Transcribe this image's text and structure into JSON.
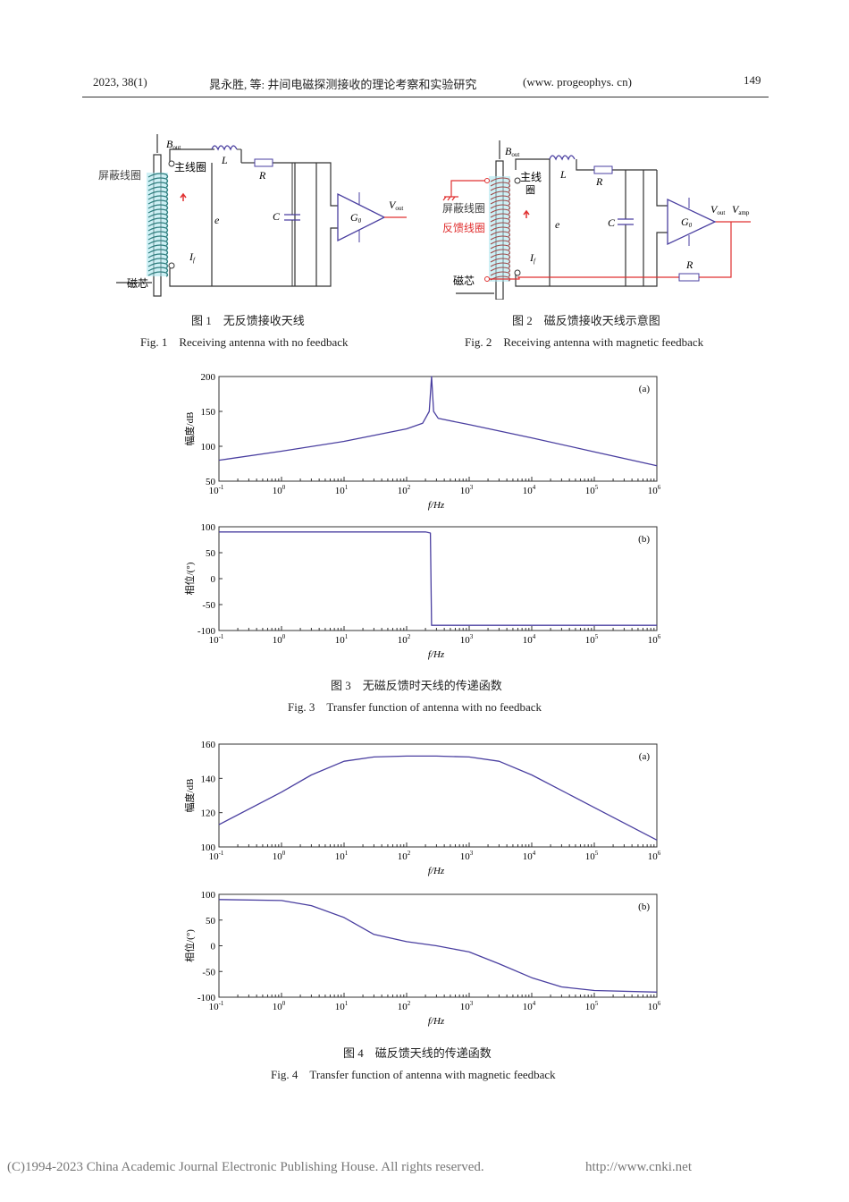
{
  "header": {
    "left": "2023, 38(1)",
    "center": "晁永胜, 等: 井间电磁探测接收的理论考察和实验研究",
    "url": "(www. progeophys. cn)",
    "page": "149"
  },
  "fig1": {
    "cn": "图 1　无反馈接收天线",
    "en": "Fig. 1　Receiving antenna with no feedback",
    "labels": {
      "bout": "B",
      "bout_sub": "out",
      "main_coil": "主线圈",
      "shield_coil": "屏蔽线圈",
      "core": "磁芯",
      "L": "L",
      "R": "R",
      "C": "C",
      "e": "e",
      "If": "I",
      "If_sub": "f",
      "G0": "G",
      "G0_sub": "0",
      "vout": "V",
      "vout_sub": "out"
    }
  },
  "fig2": {
    "cn": "图 2　磁反馈接收天线示意图",
    "en": "Fig. 2　Receiving antenna with magnetic feedback",
    "labels": {
      "bout": "B",
      "bout_sub": "out",
      "main_coil_1": "主线",
      "main_coil_2": "圈",
      "shield_coil": "屏蔽线圈",
      "feedback_coil": "反馈线圈",
      "core": "磁芯",
      "L": "L",
      "R": "R",
      "R2": "R",
      "C": "C",
      "e": "e",
      "If": "I",
      "If_sub": "f",
      "G0": "G",
      "G0_sub": "0",
      "vout": "V",
      "vout_sub": "out",
      "vamp": "V",
      "vamp_sub": "amp"
    }
  },
  "fig3": {
    "cn": "图 3　无磁反馈时天线的传递函数",
    "en": "Fig. 3　Transfer function of antenna with no feedback"
  },
  "fig4": {
    "cn": "图 4　磁反馈天线的传递函数",
    "en": "Fig. 4　Transfer function of antenna with magnetic feedback"
  },
  "colors": {
    "curve": "#4a3fa0",
    "feedback": "#e03030",
    "coil": "#2e7d7d",
    "axis": "#333333"
  },
  "chart_data": [
    {
      "id": "fig3a",
      "type": "line",
      "panel": "(a)",
      "xlabel": "f/Hz",
      "ylabel": "幅度/dB",
      "xscale": "log",
      "xlim": [
        0.1,
        1000000
      ],
      "ylim": [
        50,
        200
      ],
      "yticks": [
        50,
        100,
        150,
        200
      ],
      "xticks": [
        "10-1",
        "100",
        "101",
        "102",
        "103",
        "104",
        "105",
        "106"
      ],
      "points": [
        [
          0.1,
          80
        ],
        [
          1,
          93
        ],
        [
          10,
          107
        ],
        [
          100,
          125
        ],
        [
          180,
          133
        ],
        [
          230,
          150
        ],
        [
          250,
          200
        ],
        [
          270,
          150
        ],
        [
          320,
          140
        ],
        [
          1000,
          131
        ],
        [
          10000,
          112
        ],
        [
          100000,
          92
        ],
        [
          1000000,
          72
        ]
      ]
    },
    {
      "id": "fig3b",
      "type": "line",
      "panel": "(b)",
      "xlabel": "f/Hz",
      "ylabel": "相位/(°)",
      "xscale": "log",
      "xlim": [
        0.1,
        1000000
      ],
      "ylim": [
        -100,
        100
      ],
      "yticks": [
        -100,
        -50,
        0,
        50,
        100
      ],
      "xticks": [
        "10-1",
        "100",
        "101",
        "102",
        "103",
        "104",
        "105",
        "106"
      ],
      "points": [
        [
          0.1,
          90
        ],
        [
          200,
          90
        ],
        [
          240,
          88
        ],
        [
          250,
          -90
        ],
        [
          1000000,
          -90
        ]
      ]
    },
    {
      "id": "fig4a",
      "type": "line",
      "panel": "(a)",
      "xlabel": "f/Hz",
      "ylabel": "幅度/dB",
      "xscale": "log",
      "xlim": [
        0.1,
        1000000
      ],
      "ylim": [
        100,
        160
      ],
      "yticks": [
        100,
        120,
        140,
        160
      ],
      "xticks": [
        "10-1",
        "100",
        "101",
        "102",
        "103",
        "104",
        "105",
        "106"
      ],
      "points": [
        [
          0.1,
          113
        ],
        [
          1,
          132
        ],
        [
          3,
          142
        ],
        [
          10,
          150
        ],
        [
          30,
          152.5
        ],
        [
          100,
          153
        ],
        [
          300,
          153
        ],
        [
          1000,
          152.5
        ],
        [
          3000,
          150
        ],
        [
          10000,
          142
        ],
        [
          100000,
          123
        ],
        [
          1000000,
          104
        ]
      ]
    },
    {
      "id": "fig4b",
      "type": "line",
      "panel": "(b)",
      "xlabel": "f/Hz",
      "ylabel": "相位/(°)",
      "xscale": "log",
      "xlim": [
        0.1,
        1000000
      ],
      "ylim": [
        -100,
        100
      ],
      "yticks": [
        -100,
        -50,
        0,
        50,
        100
      ],
      "xticks": [
        "10-1",
        "100",
        "101",
        "102",
        "103",
        "104",
        "105",
        "106"
      ],
      "points": [
        [
          0.1,
          90
        ],
        [
          1,
          88
        ],
        [
          3,
          78
        ],
        [
          10,
          55
        ],
        [
          30,
          22
        ],
        [
          100,
          8
        ],
        [
          300,
          0
        ],
        [
          1000,
          -12
        ],
        [
          3000,
          -35
        ],
        [
          10000,
          -62
        ],
        [
          30000,
          -80
        ],
        [
          100000,
          -87
        ],
        [
          1000000,
          -90
        ]
      ]
    }
  ],
  "footer": {
    "copyright": "(C)1994-2023 China Academic Journal Electronic Publishing House. All rights reserved.",
    "site": "http://www.cnki.net"
  }
}
